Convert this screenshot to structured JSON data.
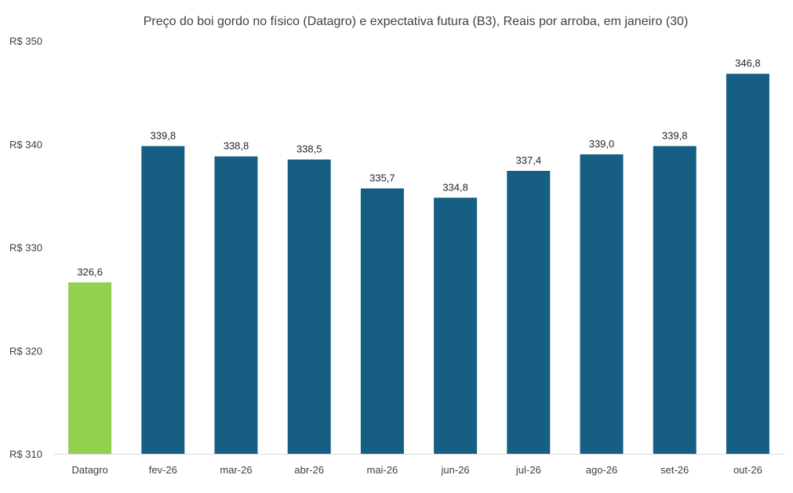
{
  "chart_data": {
    "type": "bar",
    "title": "Preço do boi gordo no físico (Datagro)  e expectativa futura (B3), Reais por arroba, em janeiro (30)",
    "xlabel": "",
    "ylabel": "",
    "categories": [
      "Datagro",
      "fev-26",
      "mar-26",
      "abr-26",
      "mai-26",
      "jun-26",
      "jul-26",
      "ago-26",
      "set-26",
      "out-26"
    ],
    "values": [
      326.6,
      339.8,
      338.8,
      338.5,
      335.7,
      334.8,
      337.4,
      339.0,
      339.8,
      346.8
    ],
    "data_labels": [
      "326,6",
      "339,8",
      "338,8",
      "338,5",
      "335,7",
      "334,8",
      "337,4",
      "339,0",
      "339,8",
      "346,8"
    ],
    "ylim": [
      310,
      350
    ],
    "yticks": [
      310,
      320,
      330,
      340,
      350
    ],
    "ytick_labels": [
      "R$ 310",
      "R$ 320",
      "R$ 330",
      "R$ 340",
      "R$ 350"
    ],
    "grid": false,
    "colors": {
      "highlight": "#92d050",
      "bar": "#165e83",
      "axis": "#d9d9d9"
    }
  }
}
